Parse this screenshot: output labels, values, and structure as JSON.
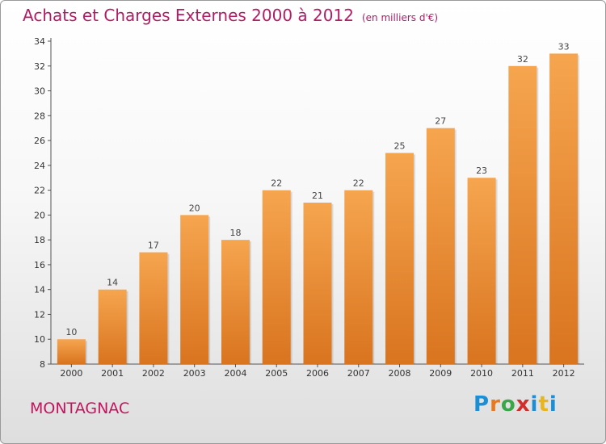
{
  "header": {
    "title": "Achats et Charges Externes 2000 à 2012",
    "subtitle": "(en milliers d'€)"
  },
  "footer": {
    "city": "MONTAGNAC",
    "brand_letters": [
      "P",
      "r",
      "o",
      "x",
      "i",
      "t",
      "i"
    ],
    "brand_colors": [
      "#1a8fd6",
      "#e8791d",
      "#3aa64a",
      "#d12d2d",
      "#1a8fd6",
      "#e8b51d",
      "#1a8fd6"
    ]
  },
  "chart_data": {
    "type": "bar",
    "categories": [
      "2000",
      "2001",
      "2002",
      "2003",
      "2004",
      "2005",
      "2006",
      "2007",
      "2008",
      "2009",
      "2010",
      "2011",
      "2012"
    ],
    "values": [
      10,
      14,
      17,
      20,
      18,
      22,
      21,
      22,
      25,
      27,
      23,
      32,
      33
    ],
    "data_labels": [
      "10",
      "14",
      "17",
      "20",
      "18",
      "22",
      "21",
      "22",
      "25",
      "27",
      "23",
      "32",
      "33"
    ],
    "ylim": [
      8,
      34
    ],
    "yticks": [
      8,
      10,
      12,
      14,
      16,
      18,
      20,
      22,
      24,
      26,
      28,
      30,
      32,
      34
    ],
    "grid": false,
    "colors": {
      "bar_light": "#f6a54f",
      "bar_dark": "#d9741f",
      "label": "#444444",
      "axis": "#555555"
    }
  }
}
